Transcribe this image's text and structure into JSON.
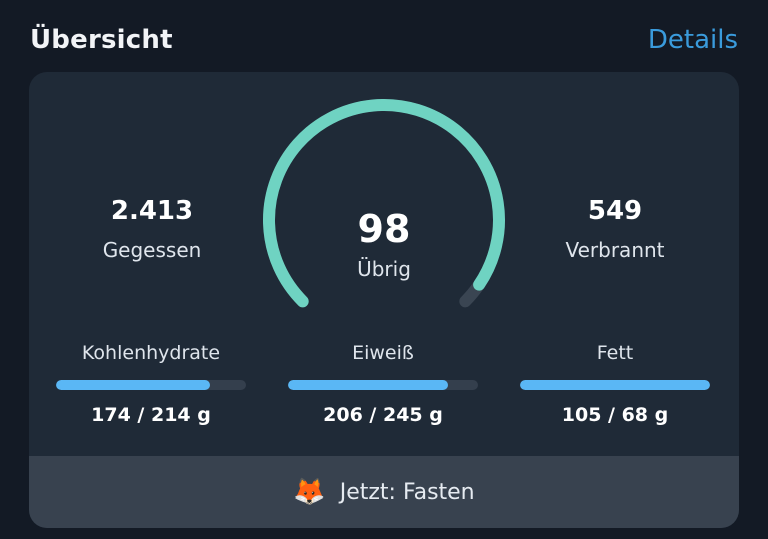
{
  "header": {
    "title": "Übersicht",
    "details_label": "Details"
  },
  "stats": {
    "eaten": {
      "value": "2.413",
      "label": "Gegessen"
    },
    "remaining": {
      "value": "98",
      "label": "Übrig",
      "progress_fraction": 0.96
    },
    "burned": {
      "value": "549",
      "label": "Verbrannt"
    }
  },
  "macros": [
    {
      "label": "Kohlenhydrate",
      "text": "174 / 214 g",
      "current": 174,
      "goal": 214
    },
    {
      "label": "Eiweiß",
      "text": "206 / 245 g",
      "current": 206,
      "goal": 245
    },
    {
      "label": "Fett",
      "text": "105 / 68 g",
      "current": 105,
      "goal": 68
    }
  ],
  "footer": {
    "icon": "fox-icon",
    "label": "Jetzt: Fasten"
  },
  "colors": {
    "gauge_fill": "#6fd3c2",
    "gauge_track": "#3a4552",
    "bar_fill": "#5ab7f5",
    "bar_track": "#343f4d",
    "link": "#3a9bdc"
  }
}
